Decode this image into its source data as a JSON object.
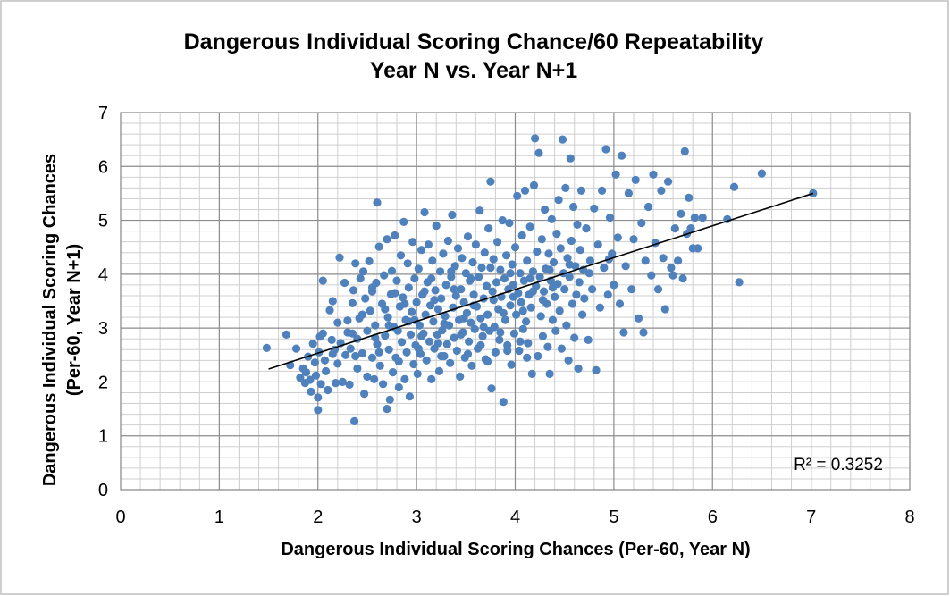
{
  "chart_data": {
    "type": "scatter",
    "title": [
      "Dangerous Individual Scoring Chance/60 Repeatability",
      "Year N vs. Year N+1"
    ],
    "xlabel": "Dangerous Individual Scoring Chances (Per-60, Year  N)",
    "ylabel": [
      "Dangerous Individual Scoring Chances",
      "(Per-60,  Year N+1)"
    ],
    "xlim": [
      0,
      8
    ],
    "ylim": [
      0,
      7
    ],
    "x_ticks": [
      "0",
      "1",
      "2",
      "3",
      "4",
      "5",
      "6",
      "7",
      "8"
    ],
    "y_ticks": [
      "0",
      "1",
      "2",
      "3",
      "4",
      "5",
      "6",
      "7"
    ],
    "grid": "major and minor",
    "marker_color": "#4F81BD",
    "trendline": {
      "type": "linear",
      "x": [
        1.5,
        7.02
      ],
      "y": [
        2.24,
        5.5
      ],
      "color": "#000000"
    },
    "r_squared_label": "R² = 0.3252",
    "points": [
      [
        1.48,
        2.63
      ],
      [
        1.68,
        2.88
      ],
      [
        1.72,
        2.31
      ],
      [
        1.78,
        2.62
      ],
      [
        1.82,
        2.08
      ],
      [
        1.85,
        2.25
      ],
      [
        1.87,
        1.98
      ],
      [
        1.88,
        2.18
      ],
      [
        1.9,
        2.47
      ],
      [
        1.92,
        2.04
      ],
      [
        1.93,
        1.82
      ],
      [
        1.95,
        2.71
      ],
      [
        1.97,
        2.36
      ],
      [
        1.98,
        2.12
      ],
      [
        2.0,
        1.48
      ],
      [
        2.0,
        1.71
      ],
      [
        2.01,
        2.55
      ],
      [
        2.02,
        2.84
      ],
      [
        2.03,
        1.96
      ],
      [
        2.05,
        2.9
      ],
      [
        2.05,
        3.88
      ],
      [
        2.07,
        2.4
      ],
      [
        2.08,
        2.2
      ],
      [
        2.1,
        1.85
      ],
      [
        2.12,
        3.33
      ],
      [
        2.14,
        2.78
      ],
      [
        2.15,
        3.5
      ],
      [
        2.17,
        2.6
      ],
      [
        2.18,
        1.98
      ],
      [
        2.2,
        2.34
      ],
      [
        2.2,
        3.1
      ],
      [
        2.22,
        4.31
      ],
      [
        2.23,
        2.72
      ],
      [
        2.25,
        2.0
      ],
      [
        2.27,
        3.84
      ],
      [
        2.28,
        2.5
      ],
      [
        2.3,
        2.92
      ],
      [
        2.3,
        3.14
      ],
      [
        2.32,
        1.95
      ],
      [
        2.33,
        2.62
      ],
      [
        2.35,
        3.46
      ],
      [
        2.36,
        3.7
      ],
      [
        2.37,
        1.27
      ],
      [
        2.38,
        4.2
      ],
      [
        2.4,
        2.8
      ],
      [
        2.4,
        2.25
      ],
      [
        2.42,
        3.18
      ],
      [
        2.43,
        3.92
      ],
      [
        2.45,
        2.53
      ],
      [
        2.46,
        4.05
      ],
      [
        2.47,
        1.78
      ],
      [
        2.48,
        3.55
      ],
      [
        2.5,
        2.95
      ],
      [
        2.5,
        2.1
      ],
      [
        2.52,
        4.24
      ],
      [
        2.53,
        3.32
      ],
      [
        2.55,
        3.68
      ],
      [
        2.55,
        2.45
      ],
      [
        2.57,
        2.05
      ],
      [
        2.58,
        3.05
      ],
      [
        2.59,
        3.84
      ],
      [
        2.6,
        5.33
      ],
      [
        2.6,
        2.7
      ],
      [
        2.62,
        4.51
      ],
      [
        2.63,
        2.3
      ],
      [
        2.65,
        3.45
      ],
      [
        2.66,
        1.96
      ],
      [
        2.67,
        3.98
      ],
      [
        2.68,
        2.86
      ],
      [
        2.7,
        1.5
      ],
      [
        2.7,
        4.65
      ],
      [
        2.71,
        3.2
      ],
      [
        2.72,
        2.6
      ],
      [
        2.73,
        1.67
      ],
      [
        2.74,
        3.63
      ],
      [
        2.75,
        4.06
      ],
      [
        2.76,
        2.18
      ],
      [
        2.77,
        3.02
      ],
      [
        2.78,
        4.72
      ],
      [
        2.79,
        2.45
      ],
      [
        2.8,
        3.88
      ],
      [
        2.81,
        2.95
      ],
      [
        2.82,
        1.9
      ],
      [
        2.83,
        3.4
      ],
      [
        2.84,
        4.35
      ],
      [
        2.85,
        2.74
      ],
      [
        2.86,
        3.57
      ],
      [
        2.87,
        4.97
      ],
      [
        2.88,
        2.05
      ],
      [
        2.89,
        3.15
      ],
      [
        2.9,
        2.55
      ],
      [
        2.91,
        4.2
      ],
      [
        2.92,
        3.75
      ],
      [
        2.93,
        1.73
      ],
      [
        2.94,
        2.88
      ],
      [
        2.95,
        3.3
      ],
      [
        2.96,
        4.6
      ],
      [
        2.97,
        2.33
      ],
      [
        2.98,
        3.92
      ],
      [
        2.99,
        2.68
      ],
      [
        3.0,
        3.48
      ],
      [
        3.01,
        2.15
      ],
      [
        3.02,
        4.1
      ],
      [
        3.03,
        3.05
      ],
      [
        3.04,
        2.52
      ],
      [
        3.05,
        4.45
      ],
      [
        3.06,
        3.62
      ],
      [
        3.07,
        2.9
      ],
      [
        3.08,
        5.15
      ],
      [
        3.09,
        3.25
      ],
      [
        3.1,
        2.4
      ],
      [
        3.11,
        3.85
      ],
      [
        3.12,
        4.55
      ],
      [
        3.13,
        2.75
      ],
      [
        3.14,
        3.42
      ],
      [
        3.15,
        2.05
      ],
      [
        3.16,
        4.25
      ],
      [
        3.17,
        3.12
      ],
      [
        3.18,
        2.62
      ],
      [
        3.19,
        3.7
      ],
      [
        3.2,
        4.9
      ],
      [
        3.21,
        2.88
      ],
      [
        3.22,
        3.35
      ],
      [
        3.23,
        2.2
      ],
      [
        3.24,
        4.05
      ],
      [
        3.25,
        3.55
      ],
      [
        3.26,
        2.96
      ],
      [
        3.27,
        4.38
      ],
      [
        3.28,
        2.48
      ],
      [
        3.29,
        3.22
      ],
      [
        3.3,
        3.8
      ],
      [
        3.31,
        2.7
      ],
      [
        3.32,
        4.62
      ],
      [
        3.33,
        3.05
      ],
      [
        3.34,
        2.35
      ],
      [
        3.35,
        3.95
      ],
      [
        3.36,
        5.1
      ],
      [
        3.37,
        3.38
      ],
      [
        3.38,
        2.82
      ],
      [
        3.39,
        4.15
      ],
      [
        3.4,
        3.6
      ],
      [
        3.41,
        2.58
      ],
      [
        3.42,
        4.48
      ],
      [
        3.43,
        3.15
      ],
      [
        3.44,
        2.1
      ],
      [
        3.45,
        3.72
      ],
      [
        3.46,
        4.3
      ],
      [
        3.47,
        2.92
      ],
      [
        3.48,
        3.48
      ],
      [
        3.49,
        2.45
      ],
      [
        3.5,
        4.02
      ],
      [
        3.51,
        3.28
      ],
      [
        3.52,
        4.7
      ],
      [
        3.53,
        2.75
      ],
      [
        3.54,
        3.88
      ],
      [
        3.55,
        3.1
      ],
      [
        3.56,
        2.3
      ],
      [
        3.57,
        4.22
      ],
      [
        3.58,
        3.62
      ],
      [
        3.59,
        2.98
      ],
      [
        3.6,
        4.55
      ],
      [
        3.61,
        3.4
      ],
      [
        3.62,
        2.62
      ],
      [
        3.63,
        3.95
      ],
      [
        3.64,
        5.18
      ],
      [
        3.65,
        3.18
      ],
      [
        3.66,
        4.12
      ],
      [
        3.67,
        2.85
      ],
      [
        3.68,
        3.55
      ],
      [
        3.69,
        4.4
      ],
      [
        3.7,
        2.42
      ],
      [
        3.71,
        3.78
      ],
      [
        3.72,
        3.25
      ],
      [
        3.73,
        4.85
      ],
      [
        3.74,
        2.95
      ],
      [
        3.75,
        5.72
      ],
      [
        3.76,
        1.88
      ],
      [
        3.77,
        3.68
      ],
      [
        3.78,
        4.28
      ],
      [
        3.79,
        3.02
      ],
      [
        3.8,
        2.55
      ],
      [
        3.81,
        3.85
      ],
      [
        3.82,
        4.6
      ],
      [
        3.83,
        3.35
      ],
      [
        3.84,
        2.78
      ],
      [
        3.85,
        4.08
      ],
      [
        3.86,
        3.58
      ],
      [
        3.87,
        5.0
      ],
      [
        3.88,
        1.63
      ],
      [
        3.89,
        3.92
      ],
      [
        3.9,
        3.15
      ],
      [
        3.91,
        4.35
      ],
      [
        3.92,
        2.68
      ],
      [
        3.93,
        3.72
      ],
      [
        3.94,
        4.95
      ],
      [
        3.95,
        3.42
      ],
      [
        3.96,
        2.32
      ],
      [
        3.97,
        4.18
      ],
      [
        3.98,
        3.8
      ],
      [
        3.99,
        2.9
      ],
      [
        4.0,
        4.5
      ],
      [
        4.01,
        3.25
      ],
      [
        4.02,
        5.45
      ],
      [
        4.03,
        3.65
      ],
      [
        4.04,
        2.58
      ],
      [
        4.05,
        4.02
      ],
      [
        4.06,
        3.48
      ],
      [
        4.07,
        4.72
      ],
      [
        4.08,
        2.98
      ],
      [
        4.09,
        3.88
      ],
      [
        4.1,
        5.55
      ],
      [
        4.11,
        3.12
      ],
      [
        4.12,
        4.25
      ],
      [
        4.13,
        2.72
      ],
      [
        4.14,
        3.62
      ],
      [
        4.15,
        4.88
      ],
      [
        4.16,
        3.38
      ],
      [
        4.17,
        2.15
      ],
      [
        4.18,
        4.05
      ],
      [
        4.19,
        5.65
      ],
      [
        4.2,
        6.52
      ],
      [
        4.21,
        3.78
      ],
      [
        4.22,
        4.42
      ],
      [
        4.23,
        2.48
      ],
      [
        4.24,
        6.25
      ],
      [
        4.25,
        3.95
      ],
      [
        4.26,
        3.22
      ],
      [
        4.27,
        4.65
      ],
      [
        4.28,
        2.85
      ],
      [
        4.29,
        3.68
      ],
      [
        4.3,
        5.2
      ],
      [
        4.31,
        4.1
      ],
      [
        4.32,
        3.45
      ],
      [
        4.33,
        2.65
      ],
      [
        4.34,
        4.38
      ],
      [
        4.35,
        2.15
      ],
      [
        4.36,
        3.88
      ],
      [
        4.37,
        5.02
      ],
      [
        4.38,
        3.15
      ],
      [
        4.39,
        4.22
      ],
      [
        4.4,
        3.58
      ],
      [
        4.41,
        2.95
      ],
      [
        4.42,
        4.75
      ],
      [
        4.43,
        3.82
      ],
      [
        4.44,
        5.38
      ],
      [
        4.45,
        3.32
      ],
      [
        4.46,
        4.48
      ],
      [
        4.47,
        2.62
      ],
      [
        4.48,
        6.5
      ],
      [
        4.49,
        4.02
      ],
      [
        4.5,
        3.72
      ],
      [
        4.51,
        5.6
      ],
      [
        4.52,
        3.05
      ],
      [
        4.53,
        4.3
      ],
      [
        4.54,
        2.4
      ],
      [
        4.55,
        3.95
      ],
      [
        4.56,
        6.15
      ],
      [
        4.57,
        4.62
      ],
      [
        4.58,
        3.45
      ],
      [
        4.59,
        5.25
      ],
      [
        4.6,
        2.82
      ],
      [
        4.61,
        4.15
      ],
      [
        4.62,
        3.62
      ],
      [
        4.63,
        4.92
      ],
      [
        4.64,
        2.25
      ],
      [
        4.65,
        3.85
      ],
      [
        4.66,
        4.45
      ],
      [
        4.67,
        5.55
      ],
      [
        4.68,
        3.25
      ],
      [
        4.69,
        4.08
      ],
      [
        4.7,
        3.55
      ],
      [
        4.72,
        4.85
      ],
      [
        4.74,
        2.78
      ],
      [
        4.76,
        4.25
      ],
      [
        4.78,
        3.72
      ],
      [
        4.8,
        5.22
      ],
      [
        4.82,
        2.22
      ],
      [
        4.84,
        4.55
      ],
      [
        4.86,
        3.38
      ],
      [
        4.88,
        5.55
      ],
      [
        4.9,
        4.12
      ],
      [
        4.92,
        6.32
      ],
      [
        4.94,
        3.62
      ],
      [
        4.96,
        5.05
      ],
      [
        4.98,
        4.38
      ],
      [
        5.0,
        3.8
      ],
      [
        5.02,
        5.85
      ],
      [
        5.04,
        4.68
      ],
      [
        5.06,
        3.45
      ],
      [
        5.08,
        6.2
      ],
      [
        5.1,
        2.92
      ],
      [
        5.12,
        4.15
      ],
      [
        5.15,
        5.5
      ],
      [
        5.18,
        3.72
      ],
      [
        5.2,
        4.65
      ],
      [
        5.22,
        5.75
      ],
      [
        5.25,
        3.18
      ],
      [
        5.28,
        4.95
      ],
      [
        5.3,
        2.92
      ],
      [
        5.32,
        4.25
      ],
      [
        5.35,
        5.25
      ],
      [
        5.38,
        3.98
      ],
      [
        5.4,
        5.85
      ],
      [
        5.42,
        4.58
      ],
      [
        5.45,
        3.72
      ],
      [
        5.48,
        5.55
      ],
      [
        5.5,
        4.3
      ],
      [
        5.52,
        3.35
      ],
      [
        5.55,
        5.72
      ],
      [
        5.58,
        4.12
      ],
      [
        5.6,
        3.98
      ],
      [
        5.62,
        4.85
      ],
      [
        5.65,
        4.25
      ],
      [
        5.68,
        5.12
      ],
      [
        5.7,
        3.92
      ],
      [
        5.72,
        6.28
      ],
      [
        5.74,
        4.75
      ],
      [
        5.76,
        5.42
      ],
      [
        5.78,
        4.85
      ],
      [
        5.8,
        4.48
      ],
      [
        5.82,
        5.05
      ],
      [
        5.85,
        4.48
      ],
      [
        5.9,
        5.05
      ],
      [
        6.15,
        5.02
      ],
      [
        6.22,
        5.62
      ],
      [
        6.27,
        3.85
      ],
      [
        6.5,
        5.87
      ],
      [
        7.02,
        5.5
      ],
      [
        2.45,
        3.25
      ],
      [
        2.55,
        3.75
      ],
      [
        2.68,
        3.35
      ],
      [
        2.78,
        3.65
      ],
      [
        2.88,
        3.45
      ],
      [
        2.98,
        3.15
      ],
      [
        3.08,
        3.68
      ],
      [
        3.18,
        3.52
      ],
      [
        3.28,
        3.08
      ],
      [
        3.38,
        3.72
      ],
      [
        3.48,
        3.18
      ],
      [
        3.58,
        3.42
      ],
      [
        3.68,
        3.02
      ],
      [
        3.78,
        3.52
      ],
      [
        3.88,
        3.28
      ],
      [
        3.98,
        3.58
      ],
      [
        4.08,
        3.32
      ],
      [
        4.18,
        3.68
      ],
      [
        4.28,
        3.52
      ],
      [
        4.38,
        3.75
      ],
      [
        2.35,
        2.9
      ],
      [
        2.58,
        2.82
      ],
      [
        2.72,
        3.05
      ],
      [
        2.92,
        3.12
      ],
      [
        3.05,
        2.85
      ],
      [
        3.22,
        2.72
      ],
      [
        3.45,
        2.88
      ],
      [
        3.65,
        2.68
      ],
      [
        3.85,
        2.92
      ],
      [
        4.05,
        2.75
      ],
      [
        2.15,
        2.52
      ],
      [
        2.38,
        2.48
      ],
      [
        2.62,
        2.55
      ],
      [
        2.82,
        2.38
      ],
      [
        3.02,
        2.62
      ],
      [
        3.25,
        2.48
      ],
      [
        3.52,
        2.52
      ],
      [
        3.72,
        2.38
      ],
      [
        3.92,
        2.58
      ],
      [
        4.12,
        2.45
      ],
      [
        3.15,
        3.92
      ],
      [
        3.35,
        4.05
      ],
      [
        3.55,
        3.92
      ],
      [
        3.75,
        4.12
      ],
      [
        3.95,
        4.02
      ],
      [
        4.15,
        3.92
      ],
      [
        4.35,
        4.08
      ],
      [
        4.55,
        4.18
      ],
      [
        4.75,
        4.02
      ],
      [
        4.95,
        4.28
      ]
    ]
  }
}
